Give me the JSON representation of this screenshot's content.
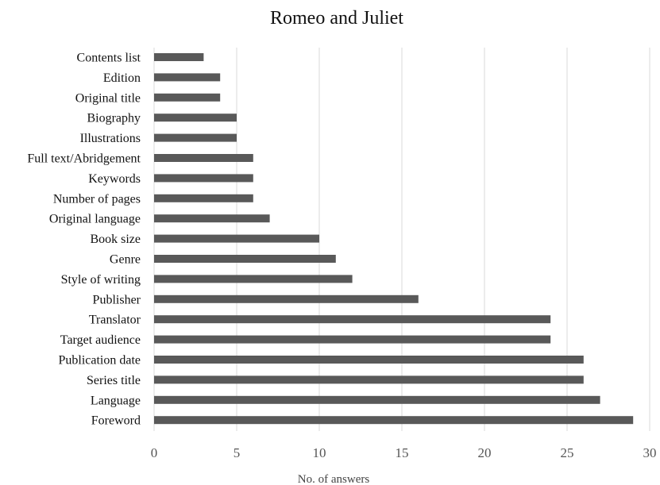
{
  "chart_data": {
    "type": "bar",
    "orientation": "horizontal",
    "title": "Romeo and Juliet",
    "xlabel": "No. of answers",
    "ylabel": "",
    "xlim": [
      0,
      30
    ],
    "x_ticks": [
      0,
      5,
      10,
      15,
      20,
      25,
      30
    ],
    "grid": "vertical",
    "legend": "none",
    "bar_color": "#595959",
    "categories": [
      "Contents list",
      "Edition",
      "Original title",
      "Biography",
      "Illustrations",
      "Full text/Abridgement",
      "Keywords",
      "Number of pages",
      "Original language",
      "Book size",
      "Genre",
      "Style of writing",
      "Publisher",
      "Translator",
      "Target audience",
      "Publication date",
      "Series title",
      "Language",
      "Foreword"
    ],
    "values": [
      3,
      4,
      4,
      5,
      5,
      6,
      6,
      6,
      7,
      10,
      11,
      12,
      16,
      24,
      24,
      26,
      26,
      27,
      29
    ]
  }
}
